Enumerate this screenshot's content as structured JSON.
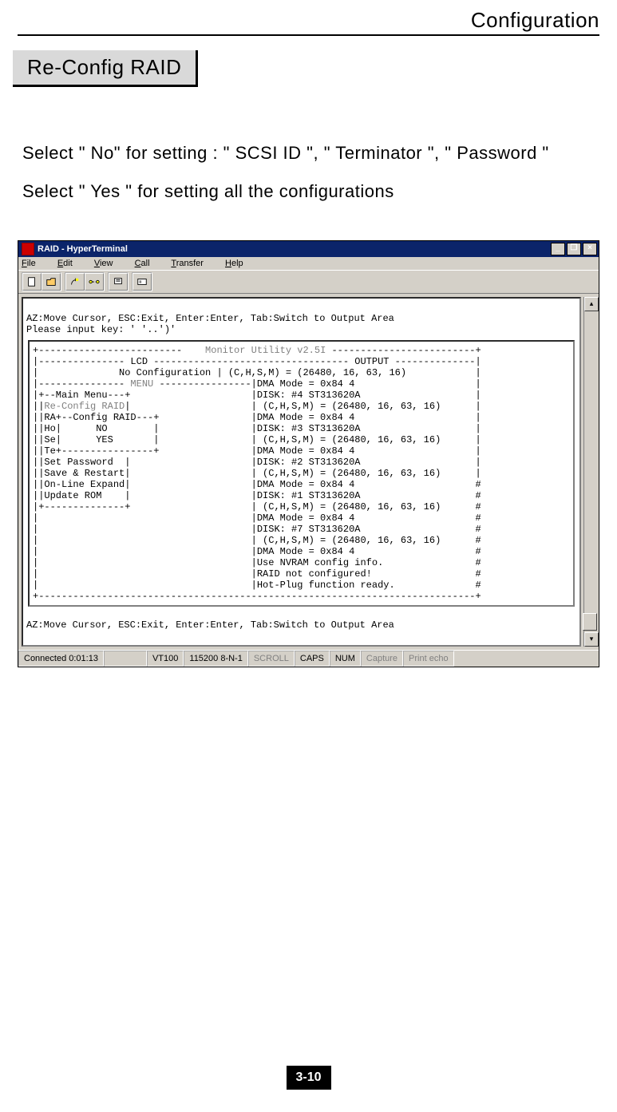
{
  "header_title": "Configuration",
  "section_title": "Re-Config RAID",
  "body_line1": "Select \" No\" for setting :  \" SCSI ID \", \" Terminator \", \" Password \"",
  "body_line2": "Select \" Yes \" for setting all the configurations",
  "window_title": "RAID - HyperTerminal",
  "menus": {
    "file": "File",
    "edit": "Edit",
    "view": "View",
    "call": "Call",
    "transfer": "Transfer",
    "help": "Help"
  },
  "title_buttons": {
    "min": "_",
    "max": "❐",
    "close": "×"
  },
  "toolbar_icons": [
    "new",
    "open",
    "connect",
    "disconnect",
    "send",
    "properties"
  ],
  "term_top1": "AZ:Move Cursor, ESC:Exit, Enter:Enter, Tab:Switch to Output Area",
  "term_top2": "Please input key: ' '..')'",
  "monitor_header": "+-------------------------    Monitor Utility v2.5I -------------------------+",
  "lines": [
    "|--------------- LCD ---------------------------------- OUTPUT --------------|",
    "|              No Configuration | (C,H,S,M) = (26480, 16, 63, 16)            |",
    "|--------------- MENU ----------------|DMA Mode = 0x84 4                     |",
    "|+--Main Menu---+                     |DISK: #4 ST313620A                    |",
    "||Re-Config RAID|                     | (C,H,S,M) = (26480, 16, 63, 16)      |",
    "||RA+--Config RAID---+                |DMA Mode = 0x84 4                     |",
    "||Ho|      NO        |                |DISK: #3 ST313620A                    |",
    "||Se|      YES       |                | (C,H,S,M) = (26480, 16, 63, 16)      |",
    "||Te+----------------+                |DMA Mode = 0x84 4                     |",
    "||Set Password  |                     |DISK: #2 ST313620A                    |",
    "||Save & Restart|                     | (C,H,S,M) = (26480, 16, 63, 16)      |",
    "||On-Line Expand|                     |DMA Mode = 0x84 4                     #",
    "||Update ROM    |                     |DISK: #1 ST313620A                    #",
    "|+--------------+                     | (C,H,S,M) = (26480, 16, 63, 16)      #",
    "|                                     |DMA Mode = 0x84 4                     #",
    "|                                     |DISK: #7 ST313620A                    #",
    "|                                     | (C,H,S,M) = (26480, 16, 63, 16)      #",
    "|                                     |DMA Mode = 0x84 4                     #",
    "|                                     |Use NVRAM config info.                #",
    "|                                     |RAID not configured!                  #",
    "|                                     |Hot-Plug function ready.              #",
    "+----------------------------------------------------------------------------+"
  ],
  "term_bottom": "AZ:Move Cursor, ESC:Exit, Enter:Enter, Tab:Switch to Output Area",
  "status": {
    "connected": "Connected 0:01:13",
    "emu": "VT100",
    "baud": "115200 8-N-1",
    "scroll": "SCROLL",
    "caps": "CAPS",
    "num": "NUM",
    "capture": "Capture",
    "print": "Print echo"
  },
  "page_num": "3-10"
}
